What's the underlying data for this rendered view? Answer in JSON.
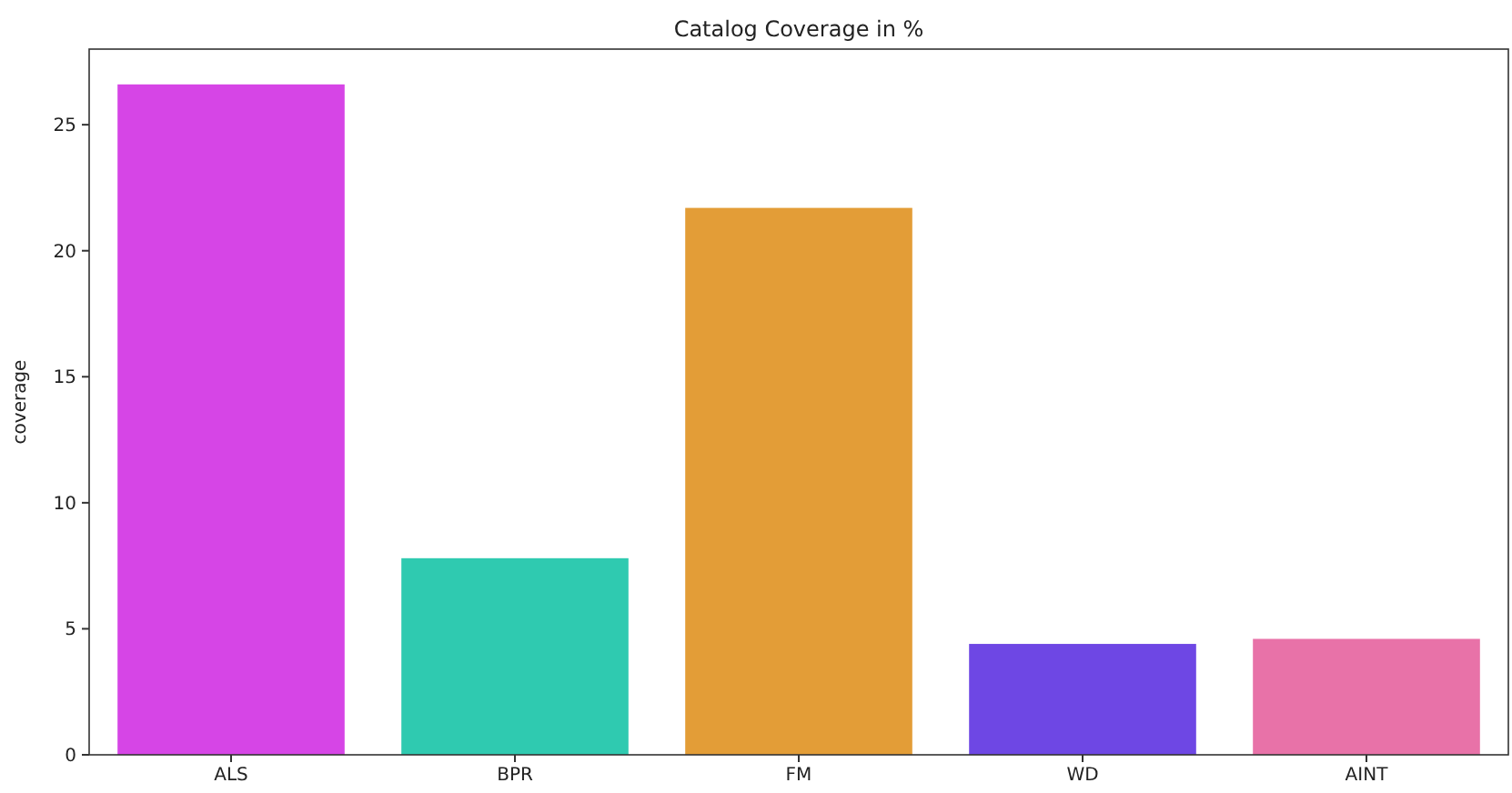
{
  "chart_data": {
    "type": "bar",
    "title": "Catalog Coverage in %",
    "ylabel": "coverage",
    "categories": [
      "ALS",
      "BPR",
      "FM",
      "WD",
      "AINT"
    ],
    "values": [
      26.6,
      7.8,
      21.7,
      4.4,
      4.6
    ],
    "colors": [
      "#d645e6",
      "#2fcab0",
      "#e39d37",
      "#6e47e4",
      "#e872a8"
    ],
    "ylim": [
      0,
      28
    ],
    "yticks": [
      0,
      5,
      10,
      15,
      20,
      25
    ],
    "grid": false
  }
}
